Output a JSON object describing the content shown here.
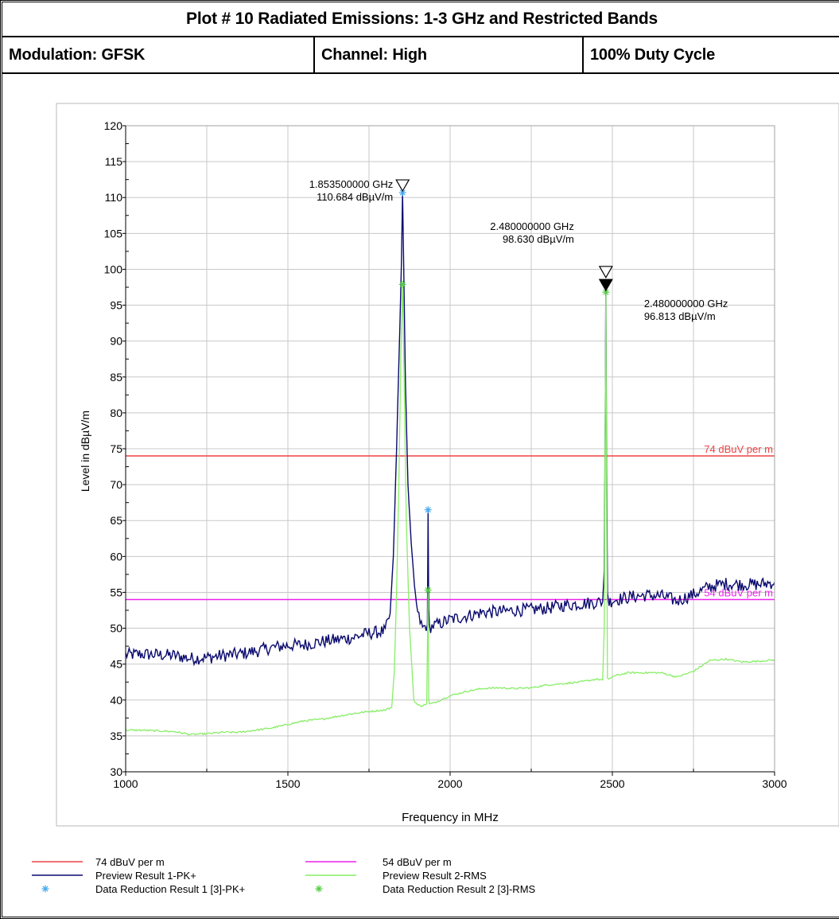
{
  "header": {
    "title": "Plot # 10 Radiated Emissions: 1-3 GHz and Restricted Bands",
    "modulation": "Modulation: GFSK",
    "channel": "Channel: High",
    "duty_cycle": "100% Duty Cycle"
  },
  "chart_data": {
    "type": "line",
    "xlabel": "Frequency in MHz",
    "ylabel": "Level in dBµV/m",
    "xlim": [
      1000,
      3000
    ],
    "ylim": [
      30,
      120
    ],
    "x_ticks": [
      1000,
      1500,
      2000,
      2500,
      3000
    ],
    "y_ticks": [
      30,
      35,
      40,
      45,
      50,
      55,
      60,
      65,
      70,
      75,
      80,
      85,
      90,
      95,
      100,
      105,
      110,
      115,
      120
    ],
    "grid": true,
    "legend_position": "bottom",
    "limit_lines": [
      {
        "label": "74 dBuV per m",
        "value": 74,
        "color": "#ee4444"
      },
      {
        "label": "54 dBuV per m",
        "value": 54,
        "color": "#ee22ee"
      }
    ],
    "series": [
      {
        "name": "Preview Result 1-PK+",
        "color": "#0a0a6e",
        "x": [
          1000,
          1050,
          1100,
          1150,
          1200,
          1250,
          1300,
          1350,
          1400,
          1450,
          1500,
          1550,
          1600,
          1650,
          1700,
          1750,
          1800,
          1815,
          1825,
          1835,
          1845,
          1850,
          1853.5,
          1857,
          1862,
          1870,
          1880,
          1890,
          1900,
          1915,
          1930,
          1932,
          1934,
          1936,
          1940,
          1960,
          2000,
          2050,
          2100,
          2150,
          2200,
          2250,
          2300,
          2350,
          2400,
          2450,
          2470,
          2475,
          2478,
          2480,
          2482,
          2485,
          2490,
          2500,
          2550,
          2600,
          2650,
          2700,
          2720,
          2750,
          2800,
          2850,
          2900,
          2950,
          3000
        ],
        "y": [
          46.3,
          46.4,
          46.3,
          46.2,
          45.8,
          45.9,
          46.2,
          46.4,
          46.8,
          47.3,
          47.6,
          47.7,
          48.1,
          48.4,
          48.7,
          49.3,
          49.6,
          52,
          60,
          75,
          92,
          101,
          110.7,
          100,
          85,
          70,
          62,
          56,
          52,
          50,
          50.5,
          66.5,
          52,
          50.2,
          50.2,
          50.5,
          51.2,
          51.7,
          52.2,
          52.3,
          52.5,
          52.6,
          52.8,
          53.2,
          53.4,
          53.6,
          53.7,
          58,
          78,
          98.6,
          74,
          55,
          53.6,
          53.9,
          54.3,
          54.6,
          54.5,
          53.8,
          54.2,
          54.7,
          55.8,
          56.2,
          56.1,
          56.1,
          56.4
        ]
      },
      {
        "name": "Preview Result 2-RMS",
        "color": "#88ee66",
        "x": [
          1000,
          1050,
          1100,
          1150,
          1200,
          1250,
          1300,
          1350,
          1400,
          1450,
          1500,
          1550,
          1600,
          1650,
          1700,
          1750,
          1800,
          1820,
          1828,
          1835,
          1842,
          1848,
          1853.5,
          1858,
          1865,
          1875,
          1888,
          1900,
          1910,
          1920,
          1928,
          1932,
          1934,
          1936,
          1940,
          1950,
          2000,
          2050,
          2100,
          2150,
          2200,
          2250,
          2300,
          2350,
          2400,
          2450,
          2470,
          2475,
          2478,
          2480,
          2482,
          2485,
          2490,
          2500,
          2550,
          2600,
          2650,
          2700,
          2750,
          2800,
          2850,
          2900,
          2950,
          3000
        ],
        "y": [
          35.8,
          35.8,
          35.7,
          35.6,
          35.2,
          35.3,
          35.5,
          35.5,
          35.8,
          36.1,
          36.6,
          37.1,
          37.3,
          37.7,
          38.1,
          38.4,
          38.6,
          39,
          44,
          55,
          70,
          88,
          97.9,
          85,
          65,
          50,
          40,
          39.3,
          39.2,
          39.3,
          39.5,
          55.3,
          40,
          39.4,
          39.5,
          39.6,
          40.6,
          41.2,
          41.6,
          41.7,
          41.6,
          41.7,
          42.1,
          42.3,
          42.5,
          42.9,
          42.8,
          50,
          80,
          96.8,
          70,
          43,
          42.8,
          43.3,
          43.8,
          43.8,
          43.8,
          43.2,
          44.0,
          45.5,
          45.7,
          45.3,
          45.4,
          45.6
        ]
      },
      {
        "name": "Data Reduction Result 1 [3]-PK+",
        "color": "#44aaee",
        "marker": "asterisk",
        "x": [
          1853.5,
          1932
        ],
        "y": [
          110.684,
          66.5
        ]
      },
      {
        "name": "Data Reduction Result 2 [3]-RMS",
        "color": "#55cc44",
        "marker": "asterisk",
        "x": [
          1853.5,
          1932,
          2480
        ],
        "y": [
          97.9,
          55.3,
          96.813
        ]
      }
    ],
    "markers": [
      {
        "freq": "1.853500000 GHz",
        "level": "110.684 dBµV/m",
        "x": 1853.5,
        "y": 110.684,
        "style": "hollow"
      },
      {
        "freq": "2.480000000 GHz",
        "level": "98.630 dBµV/m",
        "x": 2480,
        "y": 98.63,
        "style": "hollow"
      },
      {
        "freq": "2.480000000 GHz",
        "level": "96.813 dBµV/m",
        "x": 2480,
        "y": 96.813,
        "style": "filled"
      }
    ],
    "legend": [
      {
        "label": "74 dBuV per m",
        "symbol": "line",
        "color": "#ee4444"
      },
      {
        "label": "54 dBuV per m",
        "symbol": "line",
        "color": "#ee22ee"
      },
      {
        "label": "Preview Result 1-PK+",
        "symbol": "line",
        "color": "#0a0a6e"
      },
      {
        "label": "Preview Result 2-RMS",
        "symbol": "line",
        "color": "#88ee66"
      },
      {
        "label": "Data Reduction Result 1 [3]-PK+",
        "symbol": "asterisk",
        "color": "#44aaee"
      },
      {
        "label": "Data Reduction Result 2 [3]-RMS",
        "symbol": "asterisk",
        "color": "#55cc44"
      }
    ]
  }
}
